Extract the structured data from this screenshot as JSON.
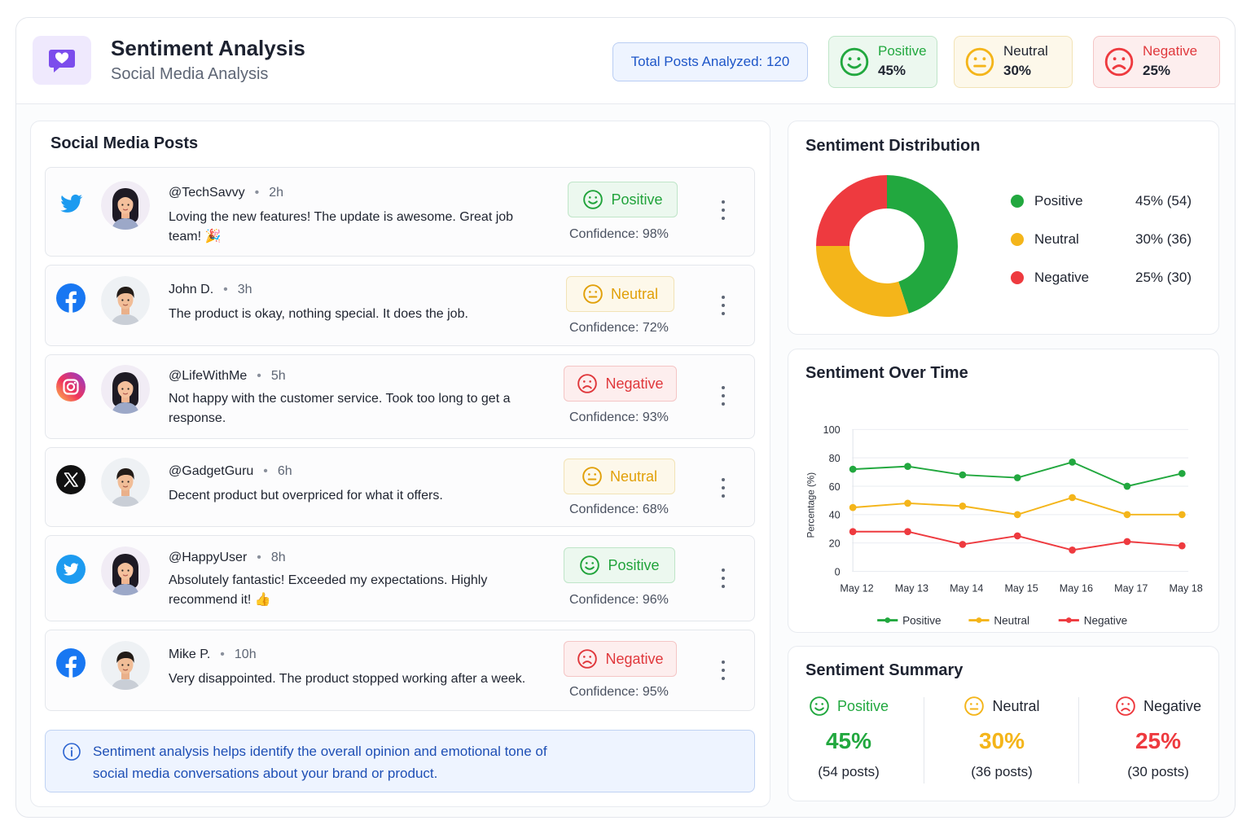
{
  "header": {
    "title": "Sentiment Analysis",
    "subtitle": "Social Media Analysis",
    "total_label": "Total Posts Analyzed: 120",
    "stats": [
      {
        "label": "Positive",
        "pct": "45%"
      },
      {
        "label": "Neutral",
        "pct": "30%"
      },
      {
        "label": "Negative",
        "pct": "25%"
      }
    ]
  },
  "colors": {
    "positive": "#22a83f",
    "neutral": "#f4b51a",
    "negative": "#ee3a3f",
    "accent": "#7c4dec"
  },
  "posts_panel": {
    "title": "Social Media Posts",
    "posts": [
      {
        "platform": "twitter-icon",
        "user": "@TechSavvy",
        "dot": "•",
        "time": "2h",
        "text": "Loving the new features! The update is awesome. Great job team! 🎉",
        "sentiment": "Positive",
        "confidence": "Confidence: 98%"
      },
      {
        "platform": "facebook-icon",
        "user": "John D.",
        "dot": "•",
        "time": "3h",
        "text": "The product is okay, nothing special. It does the job.",
        "sentiment": "Neutral",
        "confidence": "Confidence: 72%"
      },
      {
        "platform": "instagram-icon",
        "user": "@LifeWithMe",
        "dot": "•",
        "time": "5h",
        "text": "Not happy with the customer service. Took too long to get a response.",
        "sentiment": "Negative",
        "confidence": "Confidence: 93%"
      },
      {
        "platform": "x-icon",
        "user": "@GadgetGuru",
        "dot": "•",
        "time": "6h",
        "text": "Decent product but overpriced for what it offers.",
        "sentiment": "Neutral",
        "confidence": "Confidence: 68%"
      },
      {
        "platform": "twitter-icon",
        "user": "@HappyUser",
        "dot": "•",
        "time": "8h",
        "text": "Absolutely fantastic! Exceeded my expectations. Highly recommend it! 👍",
        "sentiment": "Positive",
        "confidence": "Confidence: 96%"
      },
      {
        "platform": "facebook-icon",
        "user": "Mike P.",
        "dot": "•",
        "time": "10h",
        "text": "Very disappointed. The product stopped working after a week.",
        "sentiment": "Negative",
        "confidence": "Confidence: 95%"
      }
    ],
    "info": "Sentiment analysis helps identify the overall opinion and emotional tone of social media conversations about your brand or product."
  },
  "distribution": {
    "title": "Sentiment Distribution",
    "legend": [
      {
        "name": "Positive",
        "value": "45% (54)"
      },
      {
        "name": "Neutral",
        "value": "30% (36)"
      },
      {
        "name": "Negative",
        "value": "25% (30)"
      }
    ]
  },
  "chart_data": [
    {
      "type": "pie",
      "title": "Sentiment Distribution",
      "categories": [
        "Positive",
        "Neutral",
        "Negative"
      ],
      "values": [
        45,
        30,
        25
      ],
      "donut": true
    },
    {
      "type": "line",
      "title": "Sentiment Over Time",
      "ylabel": "Percentage (%)",
      "xlabel": "",
      "x": [
        "May 12",
        "May 13",
        "May 14",
        "May 15",
        "May 16",
        "May 17",
        "May 18"
      ],
      "ylim": [
        0,
        100
      ],
      "yticks": [
        "0",
        "20",
        "40",
        "60",
        "80",
        "100"
      ],
      "grid": true,
      "legend": "bottom",
      "series": [
        {
          "name": "Positive",
          "values": [
            72,
            74,
            68,
            66,
            77,
            60,
            69
          ]
        },
        {
          "name": "Neutral",
          "values": [
            45,
            48,
            46,
            40,
            52,
            40,
            40
          ]
        },
        {
          "name": "Negative",
          "values": [
            28,
            28,
            19,
            25,
            15,
            21,
            18
          ]
        }
      ]
    }
  ],
  "summary": {
    "title": "Sentiment Summary",
    "items": [
      {
        "label": "Positive",
        "pct": "45%",
        "posts": "(54 posts)"
      },
      {
        "label": "Neutral",
        "pct": "30%",
        "posts": "(36 posts)"
      },
      {
        "label": "Negative",
        "pct": "25%",
        "posts": "(30 posts)"
      }
    ]
  }
}
